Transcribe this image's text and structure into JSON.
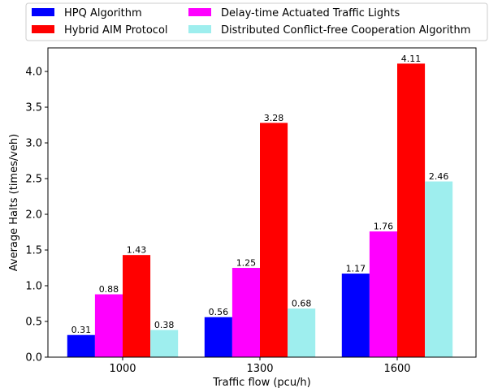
{
  "chart_data": {
    "type": "bar",
    "categories": [
      "1000",
      "1300",
      "1600"
    ],
    "series": [
      {
        "name": "HPQ Algorithm",
        "color": "#0000ff",
        "values": [
          0.31,
          0.56,
          1.17
        ]
      },
      {
        "name": "Delay-time Actuated Traffic Lights",
        "color": "#ff00ff",
        "values": [
          0.88,
          1.25,
          1.76
        ]
      },
      {
        "name": "Hybrid AIM Protocol",
        "color": "#ff0000",
        "values": [
          1.43,
          3.28,
          4.11
        ]
      },
      {
        "name": "Distributed Conflict-free Cooperation Algorithm",
        "color": "#9eeeee",
        "values": [
          0.38,
          0.68,
          2.46
        ]
      }
    ],
    "value_labels": [
      [
        "0.31",
        "0.56",
        "1.17"
      ],
      [
        "0.88",
        "1.25",
        "1.76"
      ],
      [
        "1.43",
        "3.28",
        "4.11"
      ],
      [
        "0.38",
        "0.68",
        "2.46"
      ]
    ],
    "legend_order": [
      0,
      2,
      1,
      3
    ],
    "xlabel": "Traffic flow (pcu/h)",
    "ylabel": "Average Halts (times/veh)",
    "ylim": [
      0,
      4.33
    ],
    "yticks": [
      "0.0",
      "0.5",
      "1.0",
      "1.5",
      "2.0",
      "2.5",
      "3.0",
      "3.5",
      "4.0"
    ],
    "legend_position": "top, above plot, two columns",
    "grid": false
  }
}
